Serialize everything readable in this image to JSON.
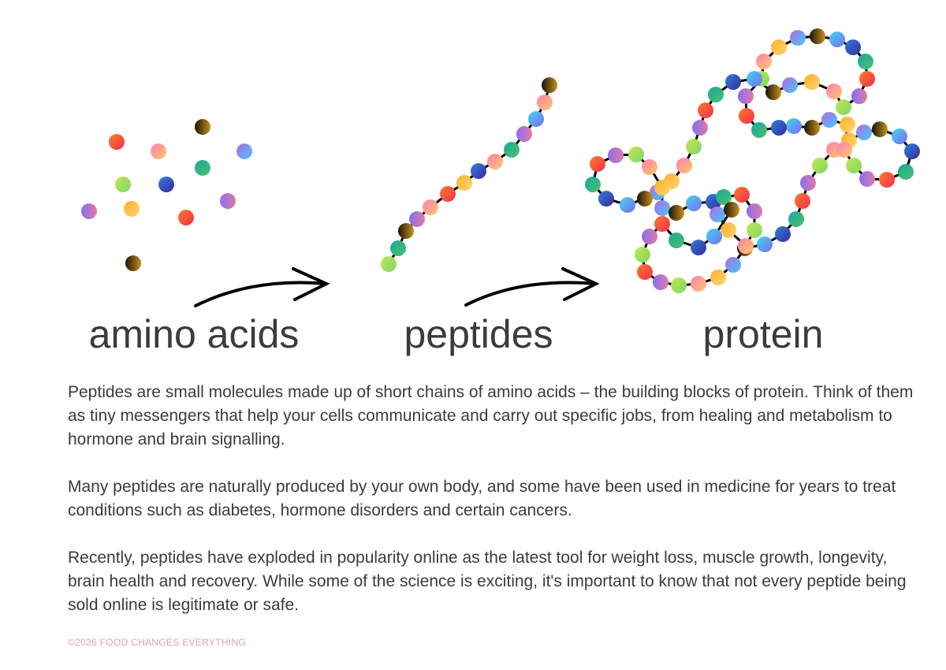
{
  "diagram": {
    "labels": [
      "amino acids",
      "peptides",
      "protein"
    ]
  },
  "paragraphs": [
    "Peptides are small molecules made up of short chains of amino acids – the building blocks of protein. Think of them as tiny messengers that help your cells communicate and carry out specific jobs, from healing and metabolism to hormone and brain signalling.",
    "Many peptides are naturally produced by your own body, and some have been used in medicine for years to treat conditions such as diabetes, hormone disorders and certain cancers.",
    "Recently, peptides have exploded in popularity online as the latest tool for weight loss, muscle growth, longevity, brain health and recovery. While some of the science is exciting, it's important to know that not every peptide being sold online is legitimate or safe."
  ],
  "footer": "©2026 FOOD CHANGES EVERYTHING"
}
